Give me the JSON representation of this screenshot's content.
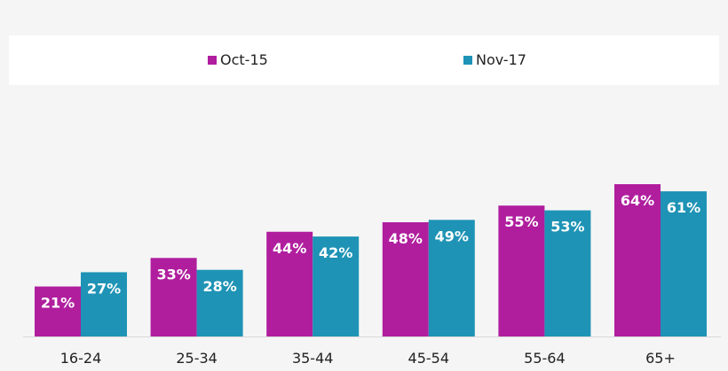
{
  "chart_data": {
    "type": "bar",
    "categories": [
      "16-24",
      "25-34",
      "35-44",
      "45-54",
      "55-64",
      "65+"
    ],
    "series": [
      {
        "name": "Oct-15",
        "values": [
          21,
          33,
          44,
          48,
          55,
          64
        ],
        "labels": [
          "21%",
          "33%",
          "44%",
          "48%",
          "55%",
          "64%"
        ],
        "color": "#b01e9e"
      },
      {
        "name": "Nov-17",
        "values": [
          27,
          28,
          42,
          49,
          53,
          61
        ],
        "labels": [
          "27%",
          "28%",
          "42%",
          "49%",
          "53%",
          "61%"
        ],
        "color": "#1e93b5"
      }
    ],
    "legend": {
      "position": "top"
    },
    "title": "",
    "xlabel": "",
    "ylabel": "",
    "ylim": [
      0,
      64
    ],
    "grid": false
  }
}
